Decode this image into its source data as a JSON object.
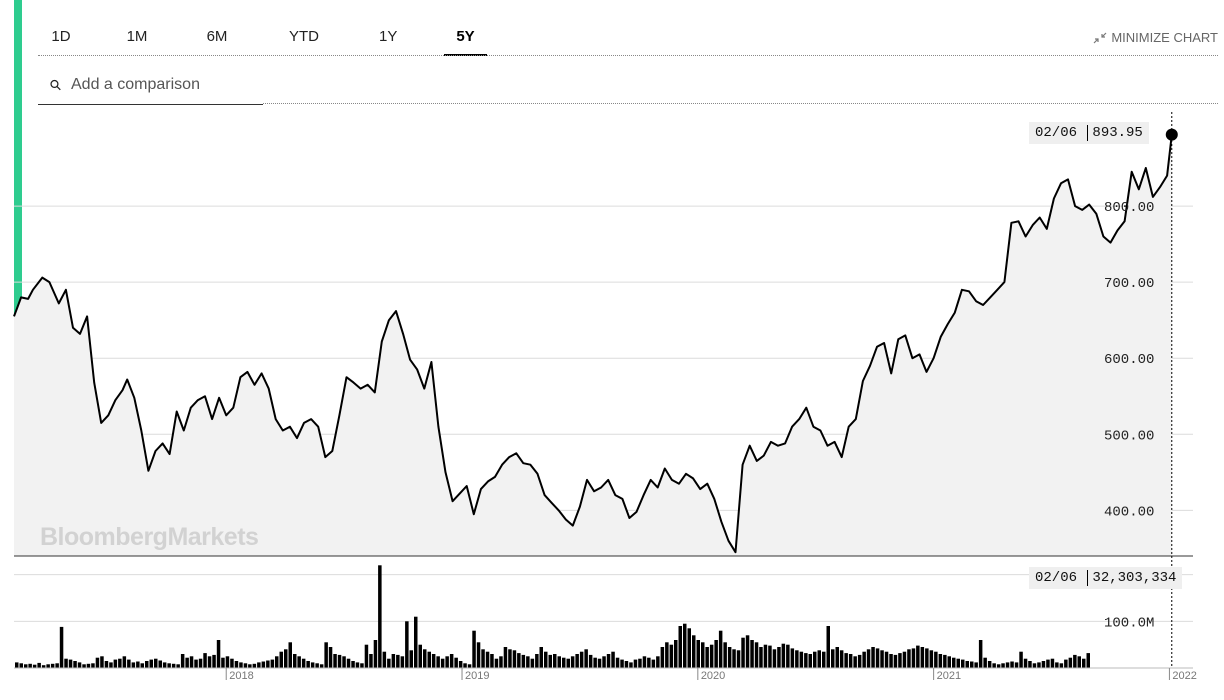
{
  "tabs": [
    {
      "label": "1D",
      "active": false
    },
    {
      "label": "1M",
      "active": false
    },
    {
      "label": "6M",
      "active": false
    },
    {
      "label": "YTD",
      "active": false
    },
    {
      "label": "1Y",
      "active": false
    },
    {
      "label": "5Y",
      "active": true
    }
  ],
  "minimize_label": "MINIMIZE CHART",
  "search": {
    "placeholder": "Add a comparison"
  },
  "watermark": "BloombergMarkets",
  "colors": {
    "accent": "#2ecc8f",
    "line": "#000000",
    "area": "#f2f2f2"
  },
  "crosshair": {
    "date": "02/06",
    "price": "893.95",
    "volume": "32,303,334"
  },
  "chart_data": [
    {
      "type": "line",
      "series_kind": "price",
      "ylim": [
        340,
        900
      ],
      "y_ticks": [
        "400.00",
        "500.00",
        "600.00",
        "700.00",
        "800.00"
      ],
      "y_tick_values": [
        400,
        500,
        600,
        700,
        800
      ],
      "x_range": [
        2017.1,
        2022.1
      ],
      "x_ticks": [
        "2018",
        "2019",
        "2020",
        "2021",
        "2022"
      ],
      "x_tick_values": [
        2018.0,
        2019.0,
        2020.0,
        2021.0,
        2022.0
      ],
      "grid": true,
      "points": [
        [
          2017.1,
          655
        ],
        [
          2017.13,
          680
        ],
        [
          2017.16,
          678
        ],
        [
          2017.18,
          690
        ],
        [
          2017.22,
          706
        ],
        [
          2017.25,
          700
        ],
        [
          2017.29,
          672
        ],
        [
          2017.32,
          690
        ],
        [
          2017.35,
          640
        ],
        [
          2017.38,
          632
        ],
        [
          2017.41,
          655
        ],
        [
          2017.44,
          568
        ],
        [
          2017.47,
          515
        ],
        [
          2017.5,
          525
        ],
        [
          2017.53,
          545
        ],
        [
          2017.56,
          558
        ],
        [
          2017.58,
          572
        ],
        [
          2017.61,
          548
        ],
        [
          2017.64,
          505
        ],
        [
          2017.67,
          452
        ],
        [
          2017.7,
          478
        ],
        [
          2017.73,
          488
        ],
        [
          2017.76,
          474
        ],
        [
          2017.79,
          530
        ],
        [
          2017.82,
          505
        ],
        [
          2017.85,
          535
        ],
        [
          2017.88,
          545
        ],
        [
          2017.91,
          550
        ],
        [
          2017.94,
          520
        ],
        [
          2017.97,
          548
        ],
        [
          2018.0,
          525
        ],
        [
          2018.03,
          535
        ],
        [
          2018.06,
          575
        ],
        [
          2018.09,
          582
        ],
        [
          2018.12,
          565
        ],
        [
          2018.15,
          580
        ],
        [
          2018.18,
          560
        ],
        [
          2018.21,
          520
        ],
        [
          2018.24,
          505
        ],
        [
          2018.27,
          510
        ],
        [
          2018.3,
          495
        ],
        [
          2018.33,
          515
        ],
        [
          2018.36,
          520
        ],
        [
          2018.39,
          510
        ],
        [
          2018.42,
          470
        ],
        [
          2018.45,
          478
        ],
        [
          2018.48,
          525
        ],
        [
          2018.51,
          575
        ],
        [
          2018.54,
          568
        ],
        [
          2018.57,
          560
        ],
        [
          2018.6,
          565
        ],
        [
          2018.63,
          555
        ],
        [
          2018.66,
          622
        ],
        [
          2018.69,
          650
        ],
        [
          2018.72,
          662
        ],
        [
          2018.75,
          632
        ],
        [
          2018.78,
          598
        ],
        [
          2018.81,
          585
        ],
        [
          2018.84,
          560
        ],
        [
          2018.87,
          595
        ],
        [
          2018.9,
          510
        ],
        [
          2018.93,
          450
        ],
        [
          2018.96,
          412
        ],
        [
          2018.99,
          422
        ],
        [
          2019.02,
          432
        ],
        [
          2019.05,
          395
        ],
        [
          2019.08,
          428
        ],
        [
          2019.11,
          438
        ],
        [
          2019.14,
          444
        ],
        [
          2019.17,
          460
        ],
        [
          2019.2,
          470
        ],
        [
          2019.23,
          475
        ],
        [
          2019.26,
          462
        ],
        [
          2019.29,
          460
        ],
        [
          2019.32,
          448
        ],
        [
          2019.35,
          420
        ],
        [
          2019.38,
          410
        ],
        [
          2019.41,
          400
        ],
        [
          2019.44,
          388
        ],
        [
          2019.47,
          380
        ],
        [
          2019.5,
          405
        ],
        [
          2019.53,
          440
        ],
        [
          2019.56,
          425
        ],
        [
          2019.59,
          430
        ],
        [
          2019.62,
          440
        ],
        [
          2019.65,
          420
        ],
        [
          2019.68,
          415
        ],
        [
          2019.71,
          390
        ],
        [
          2019.74,
          398
        ],
        [
          2019.77,
          420
        ],
        [
          2019.8,
          440
        ],
        [
          2019.83,
          430
        ],
        [
          2019.86,
          455
        ],
        [
          2019.89,
          440
        ],
        [
          2019.92,
          435
        ],
        [
          2019.95,
          448
        ],
        [
          2019.98,
          442
        ],
        [
          2020.01,
          428
        ],
        [
          2020.04,
          435
        ],
        [
          2020.07,
          415
        ],
        [
          2020.1,
          385
        ],
        [
          2020.13,
          360
        ],
        [
          2020.16,
          345
        ],
        [
          2020.19,
          460
        ],
        [
          2020.22,
          485
        ],
        [
          2020.25,
          465
        ],
        [
          2020.28,
          472
        ],
        [
          2020.31,
          490
        ],
        [
          2020.34,
          485
        ],
        [
          2020.37,
          488
        ],
        [
          2020.4,
          510
        ],
        [
          2020.43,
          520
        ],
        [
          2020.46,
          535
        ],
        [
          2020.49,
          510
        ],
        [
          2020.52,
          505
        ],
        [
          2020.55,
          485
        ],
        [
          2020.58,
          490
        ],
        [
          2020.61,
          470
        ],
        [
          2020.64,
          510
        ],
        [
          2020.67,
          520
        ],
        [
          2020.7,
          570
        ],
        [
          2020.73,
          590
        ],
        [
          2020.76,
          615
        ],
        [
          2020.79,
          620
        ],
        [
          2020.82,
          580
        ],
        [
          2020.85,
          625
        ],
        [
          2020.88,
          630
        ],
        [
          2020.91,
          600
        ],
        [
          2020.94,
          605
        ],
        [
          2020.97,
          582
        ],
        [
          2021.0,
          600
        ],
        [
          2021.03,
          628
        ],
        [
          2021.06,
          645
        ],
        [
          2021.09,
          660
        ],
        [
          2021.12,
          690
        ],
        [
          2021.15,
          688
        ],
        [
          2021.18,
          675
        ],
        [
          2021.21,
          670
        ],
        [
          2021.24,
          680
        ],
        [
          2021.27,
          690
        ],
        [
          2021.3,
          700
        ],
        [
          2021.33,
          778
        ],
        [
          2021.36,
          780
        ],
        [
          2021.39,
          760
        ],
        [
          2021.42,
          775
        ],
        [
          2021.45,
          785
        ],
        [
          2021.48,
          770
        ],
        [
          2021.51,
          810
        ],
        [
          2021.54,
          830
        ],
        [
          2021.57,
          835
        ],
        [
          2021.6,
          800
        ],
        [
          2021.63,
          795
        ],
        [
          2021.66,
          802
        ],
        [
          2021.69,
          790
        ],
        [
          2021.72,
          760
        ],
        [
          2021.75,
          752
        ],
        [
          2021.78,
          768
        ],
        [
          2021.81,
          780
        ],
        [
          2021.84,
          845
        ],
        [
          2021.87,
          822
        ],
        [
          2021.9,
          850
        ],
        [
          2021.93,
          812
        ],
        [
          2021.96,
          825
        ],
        [
          2021.99,
          840
        ],
        [
          2022.01,
          893.95
        ]
      ]
    },
    {
      "type": "bar",
      "series_kind": "volume",
      "ylim": [
        0,
        240000000
      ],
      "y_ticks": [
        "100.0M",
        "200.0M"
      ],
      "y_tick_values": [
        100000000,
        200000000
      ],
      "x_range": [
        2017.1,
        2022.1
      ],
      "bar_count": 240,
      "values_millions": [
        12,
        10,
        8,
        9,
        7,
        11,
        6,
        8,
        9,
        10,
        88,
        20,
        18,
        15,
        12,
        8,
        9,
        10,
        22,
        25,
        15,
        12,
        18,
        20,
        25,
        18,
        12,
        14,
        10,
        15,
        18,
        20,
        16,
        12,
        10,
        9,
        8,
        30,
        22,
        25,
        18,
        20,
        32,
        25,
        28,
        60,
        22,
        25,
        20,
        15,
        12,
        10,
        8,
        9,
        12,
        14,
        16,
        18,
        25,
        35,
        40,
        55,
        30,
        25,
        20,
        15,
        12,
        10,
        8,
        55,
        45,
        30,
        28,
        25,
        20,
        15,
        12,
        10,
        50,
        30,
        60,
        220,
        35,
        20,
        30,
        28,
        25,
        100,
        38,
        110,
        50,
        40,
        35,
        30,
        25,
        20,
        25,
        30,
        22,
        15,
        10,
        8,
        80,
        55,
        40,
        35,
        30,
        20,
        25,
        45,
        40,
        38,
        32,
        28,
        25,
        20,
        30,
        45,
        35,
        28,
        30,
        25,
        22,
        20,
        25,
        30,
        35,
        40,
        28,
        22,
        20,
        25,
        30,
        35,
        22,
        18,
        15,
        12,
        18,
        20,
        25,
        22,
        18,
        25,
        45,
        55,
        50,
        60,
        90,
        95,
        85,
        70,
        60,
        55,
        45,
        50,
        60,
        80,
        55,
        45,
        40,
        38,
        65,
        70,
        60,
        55,
        45,
        50,
        48,
        40,
        45,
        52,
        50,
        42,
        38,
        35,
        32,
        30,
        35,
        38,
        35,
        90,
        40,
        45,
        38,
        32,
        30,
        25,
        28,
        35,
        40,
        45,
        42,
        38,
        35,
        30,
        28,
        32,
        35,
        40,
        42,
        48,
        45,
        42,
        38,
        35,
        30,
        28,
        25,
        22,
        20,
        18,
        15,
        14,
        12,
        60,
        22,
        15,
        10,
        8,
        10,
        12,
        14,
        12,
        35,
        20,
        15,
        10,
        12,
        15,
        18,
        20,
        12,
        10,
        18,
        22,
        28,
        25,
        20,
        32
      ]
    }
  ]
}
